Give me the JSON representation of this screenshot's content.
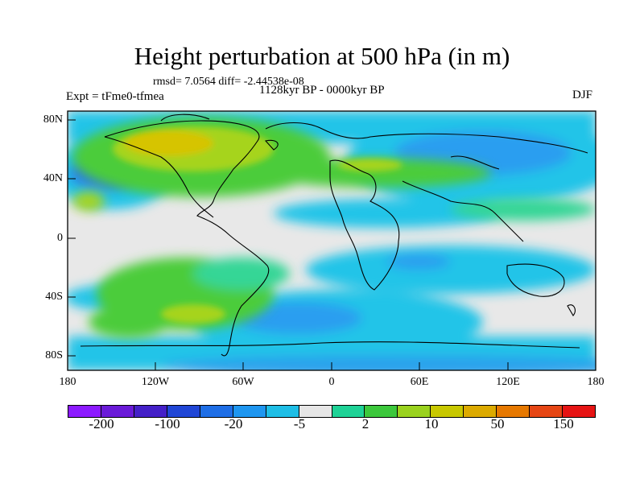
{
  "title": "Height perturbation at 500 hPa (in m)",
  "stats_line": "rmsd= 7.0564 diff= -2.44538e-08",
  "period": "1128kyr BP - 0000kyr BP",
  "experiment": "Expt = tFme0-tfmea",
  "season": "DJF",
  "lat_labels": [
    "80N",
    "40N",
    "0",
    "40S",
    "80S"
  ],
  "lon_labels": [
    "180",
    "120W",
    "60W",
    "0",
    "60E",
    "120E",
    "180"
  ],
  "colorbar": {
    "colors": [
      "#8c1aff",
      "#6a1ad8",
      "#4420c8",
      "#2046d6",
      "#1e6ee6",
      "#1e96f0",
      "#1ebee6",
      "#e6e6e6",
      "#1ed296",
      "#3cc83c",
      "#9ad21e",
      "#c8c800",
      "#dcaa00",
      "#e67800",
      "#e64614",
      "#e61414"
    ],
    "labels": [
      "-200",
      "-100",
      "-20",
      "-5",
      "2",
      "10",
      "50",
      "150"
    ]
  },
  "icons": {
    "map": "world-coastline-map"
  }
}
